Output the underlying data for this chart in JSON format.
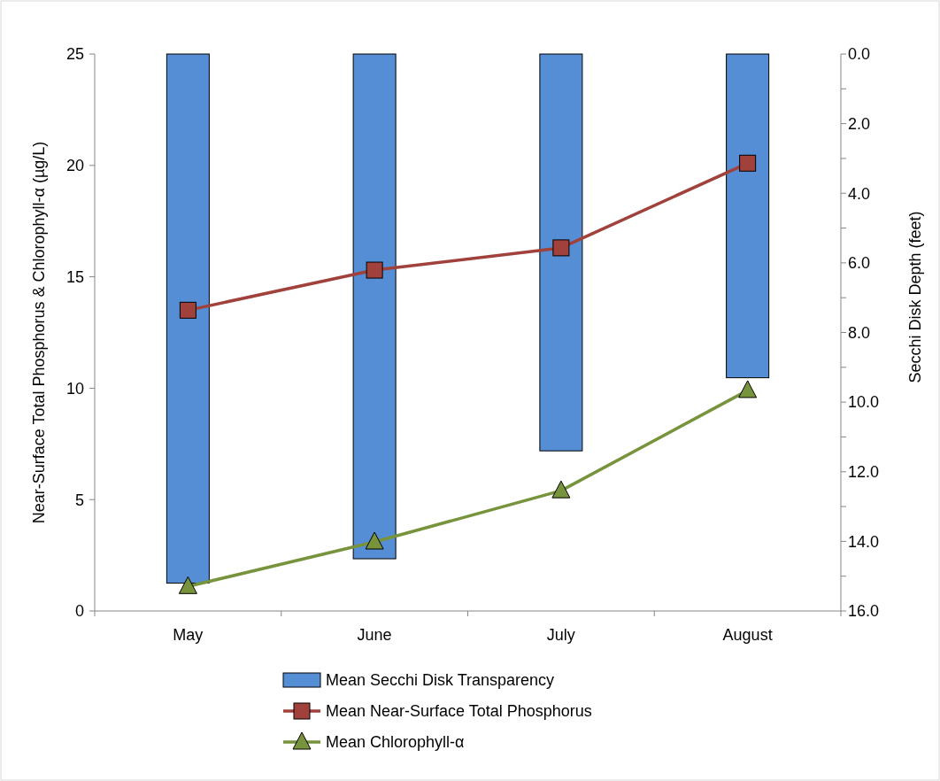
{
  "chart_data": {
    "type": "bar",
    "categories": [
      "May",
      "June",
      "July",
      "August"
    ],
    "ylabel": "Near-Surface Total Phosphorus & Chlorophyll-α (µg/L)",
    "y2label": "Secchi Disk Depth (feet)",
    "ylim": [
      0,
      25
    ],
    "yticks": [
      0,
      5,
      10,
      15,
      20,
      25
    ],
    "y2lim": [
      16,
      0
    ],
    "y2ticks": [
      {
        "value": 0,
        "label": "0.0"
      },
      {
        "value": 1,
        "label": null
      },
      {
        "value": 2,
        "label": "2.0"
      },
      {
        "value": 3,
        "label": null
      },
      {
        "value": 4,
        "label": "4.0"
      },
      {
        "value": 5,
        "label": null
      },
      {
        "value": 6,
        "label": "6.0"
      },
      {
        "value": 7,
        "label": null
      },
      {
        "value": 8,
        "label": "8.0"
      },
      {
        "value": 9,
        "label": null
      },
      {
        "value": 10,
        "label": "10.0"
      },
      {
        "value": 11,
        "label": null
      },
      {
        "value": 12,
        "label": "12.0"
      },
      {
        "value": 13,
        "label": null
      },
      {
        "value": 14,
        "label": "14.0"
      },
      {
        "value": 15,
        "label": null
      },
      {
        "value": 16,
        "label": "16.0"
      }
    ],
    "legend": "bottom",
    "grid": false,
    "series": [
      {
        "name": "Mean Secchi Disk Transparency",
        "axis": "y2",
        "color": "#558ed5",
        "values": [
          15.2,
          14.5,
          11.4,
          9.3
        ]
      },
      {
        "name": "Mean Near-Surface Total Phosphorus",
        "type": "line",
        "marker": "square",
        "color": "#a0413c",
        "values": [
          13.5,
          15.3,
          16.3,
          20.1
        ]
      },
      {
        "name": "Mean Chlorophyll-α",
        "type": "line",
        "marker": "triangle",
        "color": "#77933c",
        "values": [
          1.1,
          3.1,
          5.4,
          9.9
        ]
      }
    ]
  }
}
